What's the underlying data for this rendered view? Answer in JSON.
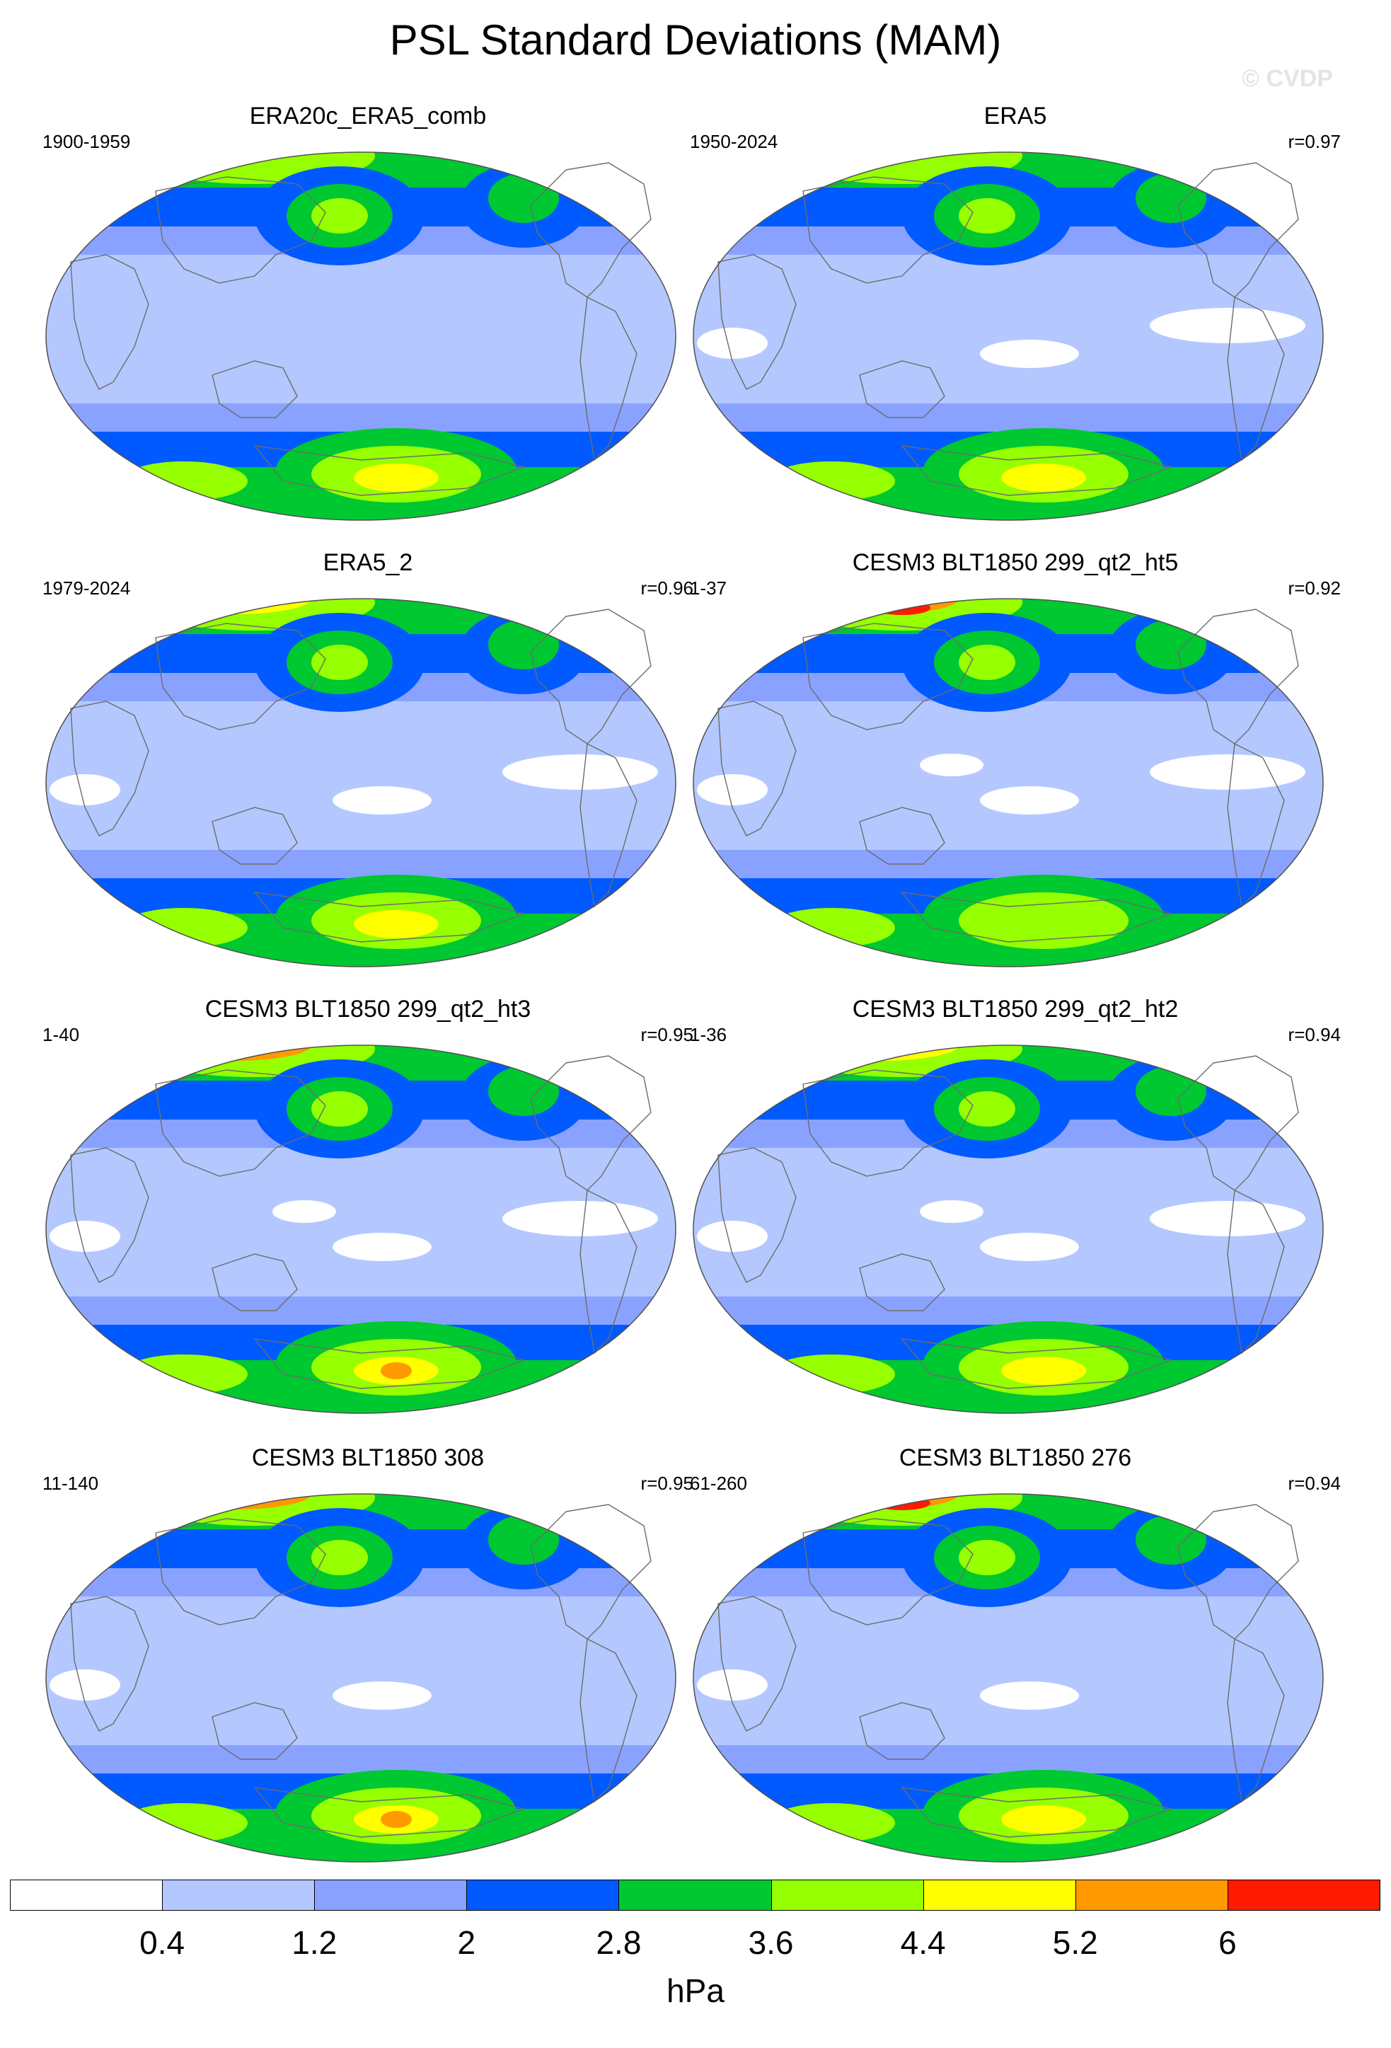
{
  "title": "PSL Standard Deviations (MAM)",
  "watermark": "© CVDP",
  "units": "hPa",
  "colors": {
    "ocean": "#b4c8ff",
    "land_line": "#6c6c6c",
    "outline": "#505050",
    "levels": [
      "#ffffff",
      "#b4c8ff",
      "#8aa2ff",
      "#005aff",
      "#00c830",
      "#96ff00",
      "#ffff00",
      "#ff9900",
      "#ff1a00"
    ]
  },
  "colorbar": {
    "labels": [
      "0.4",
      "1.2",
      "2",
      "2.8",
      "3.6",
      "4.4",
      "5.2",
      "6"
    ]
  },
  "panels": [
    {
      "title": "ERA20c_ERA5_comb",
      "years": "1900-1959",
      "corr": "",
      "nh_max": "#96ff00",
      "nh_core": "",
      "np_max": "#96ff00",
      "sh_max": "#ffff00",
      "sh_core": "",
      "white": 0
    },
    {
      "title": "ERA5",
      "years": "1950-2024",
      "corr": "r=0.97",
      "nh_max": "#96ff00",
      "nh_core": "",
      "np_max": "#96ff00",
      "sh_max": "#ffff00",
      "sh_core": "",
      "white": 3
    },
    {
      "title": "ERA5_2",
      "years": "1979-2024",
      "corr": "r=0.96",
      "nh_max": "#ffff00",
      "nh_core": "",
      "np_max": "#96ff00",
      "sh_max": "#ffff00",
      "sh_core": "",
      "white": 3
    },
    {
      "title": "CESM3 BLT1850 299_qt2_ht5",
      "years": "1-37",
      "corr": "r=0.92",
      "nh_max": "#ff9900",
      "nh_core": "#ff1a00",
      "np_max": "#96ff00",
      "sh_max": "#96ff00",
      "sh_core": "",
      "white": 4
    },
    {
      "title": "CESM3 BLT1850 299_qt2_ht3",
      "years": "1-40",
      "corr": "r=0.95",
      "nh_max": "#ff9900",
      "nh_core": "",
      "np_max": "#96ff00",
      "sh_max": "#ffff00",
      "sh_core": "#ff9900",
      "white": 4
    },
    {
      "title": "CESM3 BLT1850 299_qt2_ht2",
      "years": "1-36",
      "corr": "r=0.94",
      "nh_max": "#ffff00",
      "nh_core": "",
      "np_max": "#96ff00",
      "sh_max": "#ffff00",
      "sh_core": "",
      "white": 4
    },
    {
      "title": "CESM3 BLT1850 308",
      "years": "11-140",
      "corr": "r=0.95",
      "nh_max": "#ff9900",
      "nh_core": "",
      "np_max": "#96ff00",
      "sh_max": "#ffff00",
      "sh_core": "#ff9900",
      "white": 2
    },
    {
      "title": "CESM3 BLT1850 276",
      "years": "61-260",
      "corr": "r=0.94",
      "nh_max": "#ff9900",
      "nh_core": "#ff1a00",
      "np_max": "#96ff00",
      "sh_max": "#ffff00",
      "sh_core": "",
      "white": 2
    }
  ]
}
